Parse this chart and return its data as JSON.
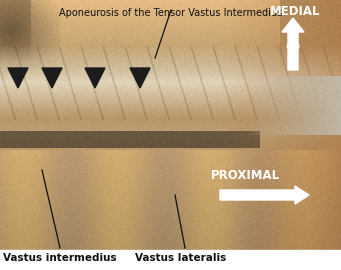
{
  "title_text": "Aponeurosis of the Tensor Vastus Intermedius",
  "title_fontsize": 7.0,
  "title_color": "#111111",
  "label_vi": "Vastus intermedius",
  "label_vl": "Vastus lateralis",
  "label_fontsize": 7.5,
  "label_color": "#111111",
  "medial_text": "MEDIAL",
  "proximal_text": "PROXIMAL",
  "direction_fontsize": 8.5,
  "direction_color": "white",
  "background_color": "white"
}
